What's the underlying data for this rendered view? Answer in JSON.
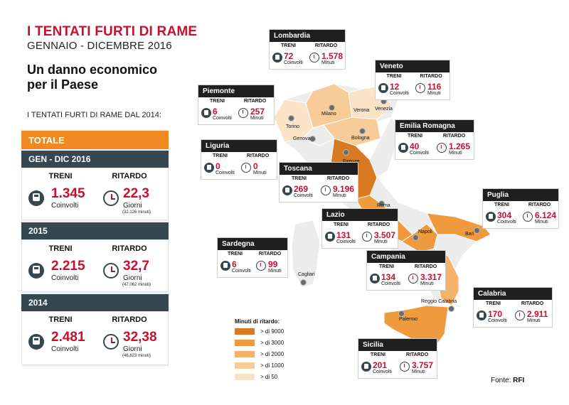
{
  "header": {
    "title": "I TENTATI FURTI DI RAME",
    "subtitle": "GENNAIO - DICEMBRE 2016",
    "headline_line1": "Un danno economico",
    "headline_line2": "per il Paese",
    "since_label": "I TENTATI FURTI DI RAME DAL 2014:"
  },
  "totals": {
    "total_label": "TOTALE",
    "col_trains": "TRENI",
    "col_delay": "RITARDO",
    "periods": [
      {
        "label": "GEN - DIC 2016",
        "trains": "1.345",
        "trains_unit": "Coinvolti",
        "delay": "22,3",
        "delay_unit": "Giorni",
        "delay_minutes": "(32.126 minuti)"
      },
      {
        "label": "2015",
        "trains": "2.215",
        "trains_unit": "Coinvolti",
        "delay": "32,7",
        "delay_unit": "Giorni",
        "delay_minutes": "(47.062 minuti)"
      },
      {
        "label": "2014",
        "trains": "2.481",
        "trains_unit": "Coinvolti",
        "delay": "32,38",
        "delay_unit": "Giorni",
        "delay_minutes": "(46.623 minuti)"
      }
    ]
  },
  "callout_cols": {
    "trains": "TRENI",
    "delay": "RITARDO",
    "trains_unit": "Coinvolti",
    "delay_unit": "Minuti"
  },
  "regions": [
    {
      "name": "Lombardia",
      "trains": "72",
      "minutes": "1.578"
    },
    {
      "name": "Veneto",
      "trains": "12",
      "minutes": "116"
    },
    {
      "name": "Piemonte",
      "trains": "6",
      "minutes": "257"
    },
    {
      "name": "Emilia Romagna",
      "trains": "40",
      "minutes": "1.265"
    },
    {
      "name": "Liguria",
      "trains": "0",
      "minutes": "0"
    },
    {
      "name": "Toscana",
      "trains": "269",
      "minutes": "9.196"
    },
    {
      "name": "Puglia",
      "trains": "304",
      "minutes": "6.124"
    },
    {
      "name": "Lazio",
      "trains": "131",
      "minutes": "3.507"
    },
    {
      "name": "Sardegna",
      "trains": "6",
      "minutes": "99"
    },
    {
      "name": "Campania",
      "trains": "134",
      "minutes": "3.317"
    },
    {
      "name": "Calabria",
      "trains": "170",
      "minutes": "2.911"
    },
    {
      "name": "Sicilia",
      "trains": "201",
      "minutes": "3.757"
    }
  ],
  "cities": [
    "Milano",
    "Verona",
    "Venezia",
    "Torino",
    "Genova",
    "Bologna",
    "Firenze",
    "Roma",
    "Napoli",
    "Bari",
    "Cagliari",
    "Reggio Calabria",
    "Palermo"
  ],
  "legend": {
    "title": "Minuti di ritardo:",
    "items": [
      {
        "label": "> di 9000",
        "color": "#d97a22"
      },
      {
        "label": "> di 3000",
        "color": "#f09a3e"
      },
      {
        "label": "> di 2000",
        "color": "#f5b26a"
      },
      {
        "label": "> di 1000",
        "color": "#f8cc98"
      },
      {
        "label": "> di 50",
        "color": "#fbe3c8"
      }
    ]
  },
  "source": {
    "label": "Fonte:",
    "value": "RFI"
  },
  "colors": {
    "accent": "#c8102e",
    "orange": "#ef8a22",
    "dark": "#37474f",
    "neutral_region": "#ececec"
  }
}
